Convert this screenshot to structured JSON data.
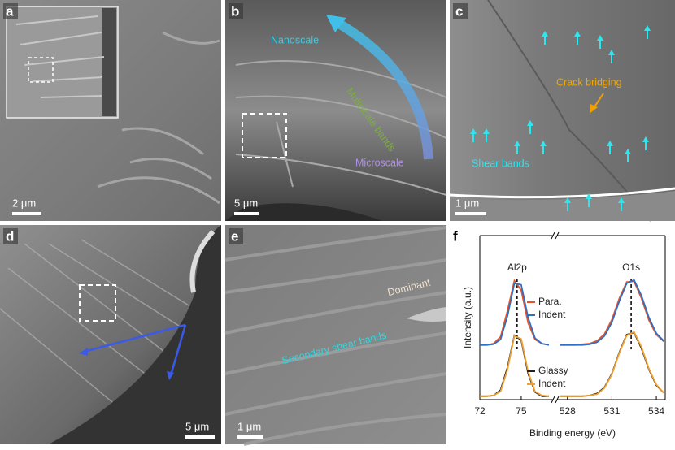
{
  "panels": [
    {
      "label": "a",
      "scale_bar": "2 μm"
    },
    {
      "label": "b",
      "scale_bar": "5 μm",
      "annotations": [
        "Nanoscale",
        "Multiscale bands",
        "Microscale"
      ]
    },
    {
      "label": "c",
      "scale_bar": "1 μm",
      "annotations": [
        "Crack bridging",
        "Shear bands"
      ]
    },
    {
      "label": "d",
      "scale_bar": "5 μm"
    },
    {
      "label": "e",
      "scale_bar": "1 μm",
      "annotations": [
        "Dominant",
        "Secondary shear bands"
      ]
    }
  ],
  "chart_data": {
    "type": "line",
    "label": "f",
    "xlabel": "Binding energy (eV)",
    "ylabel": "Intensity (a.u.)",
    "peak_labels": [
      "Al2p",
      "O1s"
    ],
    "peak_lines": [
      74.7,
      532.3
    ],
    "xlim": [
      72,
      534.6
    ],
    "xbreak": [
      77.3,
      527.3
    ],
    "xticks": [
      72,
      75,
      528,
      531,
      534
    ],
    "ylim": [
      0,
      2.4
    ],
    "x": [
      72,
      72.5,
      73,
      73.5,
      74,
      74.5,
      75,
      75.5,
      76,
      76.5,
      77,
      527.5,
      528,
      528.5,
      529,
      529.5,
      530,
      530.5,
      531,
      531.5,
      532,
      532.5,
      533,
      533.5,
      534,
      534.5
    ],
    "series": [
      {
        "name": "Para.",
        "color": "#e8542a",
        "values": [
          0.8,
          0.8,
          0.82,
          0.92,
          1.3,
          1.74,
          1.6,
          1.12,
          0.88,
          0.82,
          0.8,
          0.8,
          0.8,
          0.8,
          0.81,
          0.82,
          0.86,
          0.96,
          1.17,
          1.48,
          1.72,
          1.73,
          1.48,
          1.16,
          0.95,
          0.85
        ]
      },
      {
        "name": "Indent",
        "color": "#2f6fc4",
        "values": [
          0.8,
          0.8,
          0.81,
          0.88,
          1.22,
          1.7,
          1.68,
          1.2,
          0.9,
          0.82,
          0.8,
          0.8,
          0.8,
          0.8,
          0.8,
          0.81,
          0.84,
          0.93,
          1.13,
          1.44,
          1.7,
          1.75,
          1.52,
          1.2,
          0.97,
          0.86
        ]
      },
      {
        "name": "Glassy",
        "color": "#222222",
        "values": [
          0.05,
          0.05,
          0.06,
          0.14,
          0.47,
          0.94,
          0.87,
          0.38,
          0.11,
          0.05,
          0.05,
          0.05,
          0.05,
          0.05,
          0.05,
          0.06,
          0.09,
          0.18,
          0.38,
          0.69,
          0.95,
          0.98,
          0.75,
          0.44,
          0.21,
          0.1
        ]
      },
      {
        "name": "Indent",
        "color": "#f0a030",
        "values": [
          0.05,
          0.05,
          0.06,
          0.12,
          0.44,
          0.93,
          0.89,
          0.41,
          0.12,
          0.06,
          0.05,
          0.05,
          0.05,
          0.05,
          0.05,
          0.06,
          0.08,
          0.17,
          0.37,
          0.68,
          0.94,
          0.99,
          0.77,
          0.45,
          0.22,
          0.1
        ]
      }
    ]
  }
}
